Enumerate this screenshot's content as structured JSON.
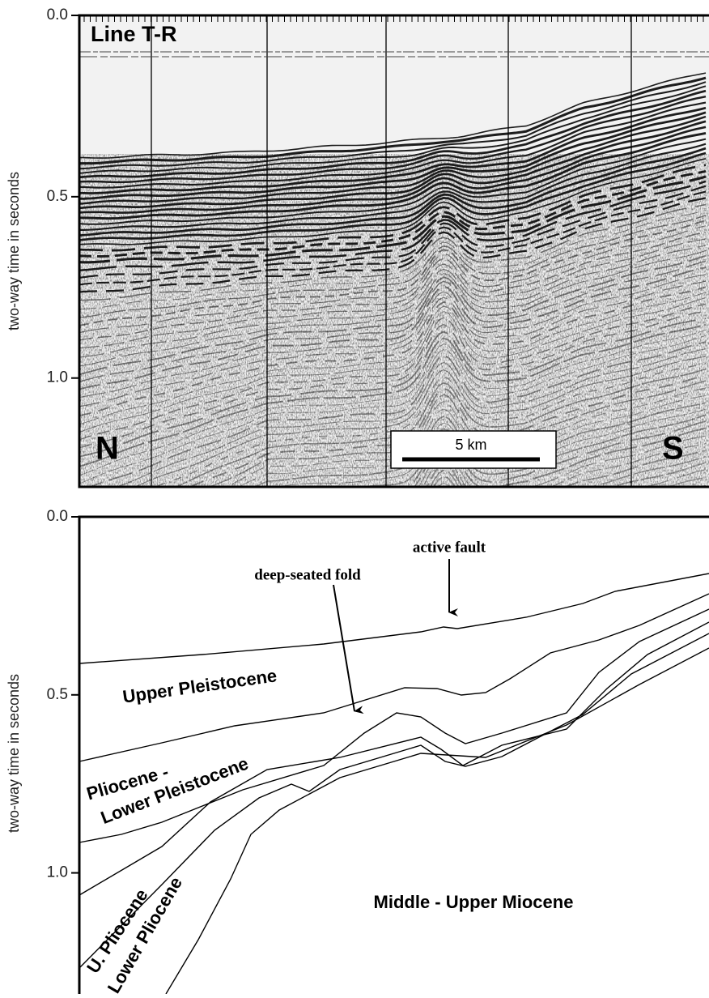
{
  "top_panel": {
    "label": "Line T-R",
    "north": "N",
    "south": "S",
    "scale_bar": "5 km",
    "y_axis": {
      "label": "two-way time in seconds",
      "ylim": [
        0,
        1.3
      ],
      "yticks": [
        {
          "value": 0,
          "label": "0.0"
        },
        {
          "value": 0.5,
          "label": "0.5"
        },
        {
          "value": 1,
          "label": "1.0"
        }
      ]
    }
  },
  "bottom_panel": {
    "y_axis": {
      "label": "two-way time in seconds",
      "ylim": [
        0,
        1.34
      ],
      "yticks": [
        {
          "value": 0,
          "label": "0.0"
        },
        {
          "value": 0.5,
          "label": "0.5"
        },
        {
          "value": 1,
          "label": "1.0"
        }
      ]
    },
    "annotations": [
      "active fault",
      "deep-seated fold"
    ],
    "units": [
      "Upper Pleistocene",
      "Pliocene -",
      "Lower Pleistocene",
      "U. Pliocene",
      "Lower Pliocene",
      "Middle - Upper Miocene"
    ]
  }
}
